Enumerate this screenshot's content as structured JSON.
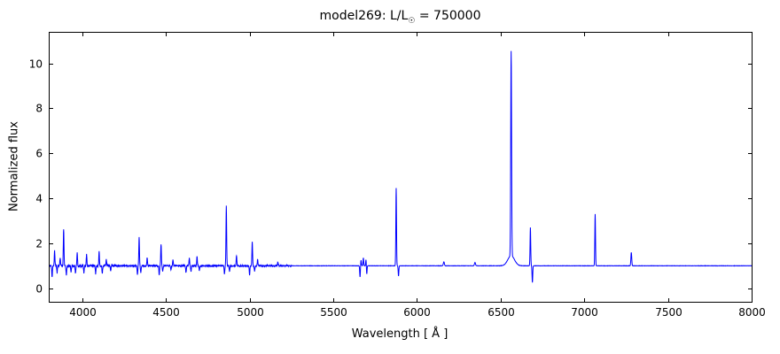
{
  "chart_data": {
    "type": "line",
    "title": "model269: L/L☉ = 750000",
    "title_parts": {
      "prefix": "model269: L/L",
      "sun": "☉",
      "suffix": " = 750000"
    },
    "xlabel": "Wavelength [ Å ]",
    "ylabel": "Normalized flux",
    "xlim": [
      3800,
      8000
    ],
    "ylim": [
      -0.6,
      11.4
    ],
    "xticks": [
      4000,
      4500,
      5000,
      5500,
      6000,
      6500,
      7000,
      7500,
      8000
    ],
    "yticks": [
      0,
      2,
      4,
      6,
      8,
      10
    ],
    "line_color": "#0000ff",
    "axis_color": "#000000",
    "baseline": 1.0,
    "legend": "none",
    "grid": false,
    "features": [
      [
        3820,
        -0.5,
        2
      ],
      [
        3835,
        0.65,
        2
      ],
      [
        3850,
        -0.3,
        2
      ],
      [
        3868,
        0.35,
        2
      ],
      [
        3889,
        1.65,
        2
      ],
      [
        3905,
        -0.4,
        2
      ],
      [
        3933,
        -0.3,
        2
      ],
      [
        3960,
        -0.35,
        2
      ],
      [
        3970,
        0.55,
        2
      ],
      [
        4010,
        -0.3,
        2
      ],
      [
        4026,
        0.5,
        2
      ],
      [
        4080,
        -0.35,
        2
      ],
      [
        4101,
        0.6,
        2
      ],
      [
        4120,
        -0.3,
        2
      ],
      [
        4144,
        0.25,
        2
      ],
      [
        4170,
        -0.25,
        2
      ],
      [
        4330,
        -0.4,
        2
      ],
      [
        4340,
        1.25,
        2
      ],
      [
        4350,
        -0.3,
        2
      ],
      [
        4388,
        0.35,
        2
      ],
      [
        4460,
        -0.4,
        2
      ],
      [
        4471,
        0.95,
        2
      ],
      [
        4481,
        -0.25,
        2
      ],
      [
        4530,
        -0.2,
        2
      ],
      [
        4542,
        0.25,
        2
      ],
      [
        4620,
        -0.3,
        2
      ],
      [
        4640,
        0.35,
        2
      ],
      [
        4650,
        -0.25,
        2
      ],
      [
        4686,
        0.4,
        2
      ],
      [
        4700,
        -0.2,
        2
      ],
      [
        4850,
        -0.35,
        2
      ],
      [
        4861,
        2.65,
        2
      ],
      [
        4880,
        -0.25,
        2
      ],
      [
        4922,
        0.45,
        2
      ],
      [
        5000,
        -0.4,
        2
      ],
      [
        5016,
        1.05,
        2
      ],
      [
        5030,
        -0.25,
        2
      ],
      [
        5048,
        0.3,
        2
      ],
      [
        5169,
        0.15,
        2
      ],
      [
        5660,
        -0.5,
        2
      ],
      [
        5666,
        0.25,
        2
      ],
      [
        5680,
        0.35,
        2
      ],
      [
        5696,
        0.3,
        2
      ],
      [
        5700,
        -0.4,
        2
      ],
      [
        5876,
        3.45,
        2
      ],
      [
        5890,
        -0.45,
        2
      ],
      [
        6161,
        0.18,
        3
      ],
      [
        6347,
        0.15,
        3
      ],
      [
        6563,
        9.1,
        2.5
      ],
      [
        6563,
        0.45,
        20
      ],
      [
        6678,
        1.7,
        2
      ],
      [
        6690,
        -0.75,
        2
      ],
      [
        7065,
        2.3,
        2
      ],
      [
        7281,
        0.6,
        2.5
      ]
    ],
    "noise_bands": [
      [
        3800,
        4200,
        0.05
      ],
      [
        4200,
        5250,
        0.03
      ],
      [
        5250,
        8000,
        0.006
      ]
    ]
  }
}
